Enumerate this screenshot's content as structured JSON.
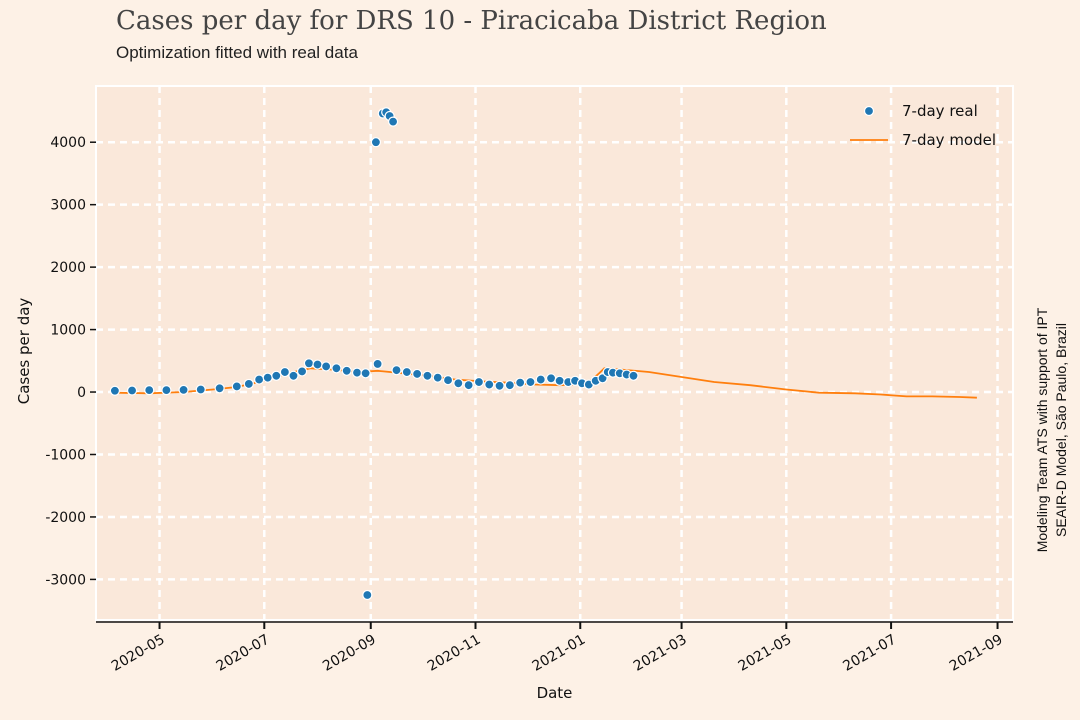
{
  "title": "Cases per day for DRS 10 - Piracicaba District Region",
  "subtitle": "Optimization fitted with real data",
  "credits": [
    "Modeling Team ATS with support of IPT",
    "SEAIR-D Model, São Paulo, Brazil"
  ],
  "colors": {
    "real": "#1f77b4",
    "model": "#ff7f0e",
    "plot_bg": "#fae8da",
    "page_bg": "#fdf1e6",
    "grid": "#ffffff"
  },
  "chart_data": {
    "type": "scatter",
    "xlabel": "Date",
    "ylabel": "Cases per day",
    "xlim": [
      "2020-03-25",
      "2021-09-10"
    ],
    "ylim": [
      -3650,
      4900
    ],
    "x_ticks": [
      "2020-05",
      "2020-07",
      "2020-09",
      "2020-11",
      "2021-01",
      "2021-03",
      "2021-05",
      "2021-07",
      "2021-09"
    ],
    "y_ticks": [
      -3000,
      -2000,
      -1000,
      0,
      1000,
      2000,
      3000,
      4000
    ],
    "grid": true,
    "legend": "top-right",
    "series": [
      {
        "name": "7-day real",
        "kind": "scatter",
        "points": [
          [
            "2020-04-05",
            20
          ],
          [
            "2020-04-15",
            25
          ],
          [
            "2020-04-25",
            30
          ],
          [
            "2020-05-05",
            30
          ],
          [
            "2020-05-15",
            35
          ],
          [
            "2020-05-25",
            40
          ],
          [
            "2020-06-05",
            60
          ],
          [
            "2020-06-15",
            90
          ],
          [
            "2020-06-22",
            130
          ],
          [
            "2020-06-28",
            200
          ],
          [
            "2020-07-03",
            230
          ],
          [
            "2020-07-08",
            260
          ],
          [
            "2020-07-13",
            320
          ],
          [
            "2020-07-18",
            260
          ],
          [
            "2020-07-23",
            330
          ],
          [
            "2020-07-27",
            460
          ],
          [
            "2020-08-01",
            440
          ],
          [
            "2020-08-06",
            410
          ],
          [
            "2020-08-12",
            380
          ],
          [
            "2020-08-18",
            340
          ],
          [
            "2020-08-24",
            310
          ],
          [
            "2020-08-29",
            300
          ],
          [
            "2020-08-30",
            -3250
          ],
          [
            "2020-09-04",
            4000
          ],
          [
            "2020-09-05",
            450
          ],
          [
            "2020-09-08",
            4460
          ],
          [
            "2020-09-10",
            4480
          ],
          [
            "2020-09-12",
            4420
          ],
          [
            "2020-09-14",
            4330
          ],
          [
            "2020-09-16",
            350
          ],
          [
            "2020-09-22",
            320
          ],
          [
            "2020-09-28",
            290
          ],
          [
            "2020-10-04",
            260
          ],
          [
            "2020-10-10",
            230
          ],
          [
            "2020-10-16",
            190
          ],
          [
            "2020-10-22",
            140
          ],
          [
            "2020-10-28",
            110
          ],
          [
            "2020-11-03",
            160
          ],
          [
            "2020-11-09",
            120
          ],
          [
            "2020-11-15",
            100
          ],
          [
            "2020-11-21",
            110
          ],
          [
            "2020-11-27",
            150
          ],
          [
            "2020-12-03",
            160
          ],
          [
            "2020-12-09",
            200
          ],
          [
            "2020-12-15",
            220
          ],
          [
            "2020-12-20",
            180
          ],
          [
            "2020-12-25",
            160
          ],
          [
            "2020-12-29",
            180
          ],
          [
            "2021-01-02",
            140
          ],
          [
            "2021-01-06",
            120
          ],
          [
            "2021-01-10",
            180
          ],
          [
            "2021-01-14",
            220
          ],
          [
            "2021-01-17",
            320
          ],
          [
            "2021-01-20",
            310
          ],
          [
            "2021-01-24",
            300
          ],
          [
            "2021-01-28",
            280
          ],
          [
            "2021-02-01",
            260
          ]
        ]
      },
      {
        "name": "7-day model",
        "kind": "line",
        "points": [
          [
            "2020-04-05",
            -10
          ],
          [
            "2020-04-25",
            -20
          ],
          [
            "2020-05-15",
            0
          ],
          [
            "2020-06-01",
            40
          ],
          [
            "2020-06-15",
            80
          ],
          [
            "2020-07-01",
            180
          ],
          [
            "2020-07-15",
            300
          ],
          [
            "2020-07-28",
            380
          ],
          [
            "2020-08-10",
            360
          ],
          [
            "2020-08-25",
            320
          ],
          [
            "2020-09-05",
            340
          ],
          [
            "2020-09-20",
            300
          ],
          [
            "2020-10-05",
            260
          ],
          [
            "2020-10-20",
            200
          ],
          [
            "2020-11-05",
            170
          ],
          [
            "2020-11-20",
            150
          ],
          [
            "2020-12-05",
            120
          ],
          [
            "2020-12-20",
            110
          ],
          [
            "2021-01-05",
            130
          ],
          [
            "2021-01-12",
            300
          ],
          [
            "2021-01-15",
            380
          ],
          [
            "2021-01-25",
            360
          ],
          [
            "2021-02-10",
            320
          ],
          [
            "2021-03-01",
            240
          ],
          [
            "2021-03-20",
            160
          ],
          [
            "2021-04-10",
            110
          ],
          [
            "2021-05-01",
            40
          ],
          [
            "2021-05-20",
            -10
          ],
          [
            "2021-06-10",
            -20
          ],
          [
            "2021-06-25",
            -40
          ],
          [
            "2021-07-10",
            -70
          ],
          [
            "2021-07-25",
            -70
          ],
          [
            "2021-08-10",
            -80
          ],
          [
            "2021-08-20",
            -90
          ]
        ]
      }
    ]
  }
}
